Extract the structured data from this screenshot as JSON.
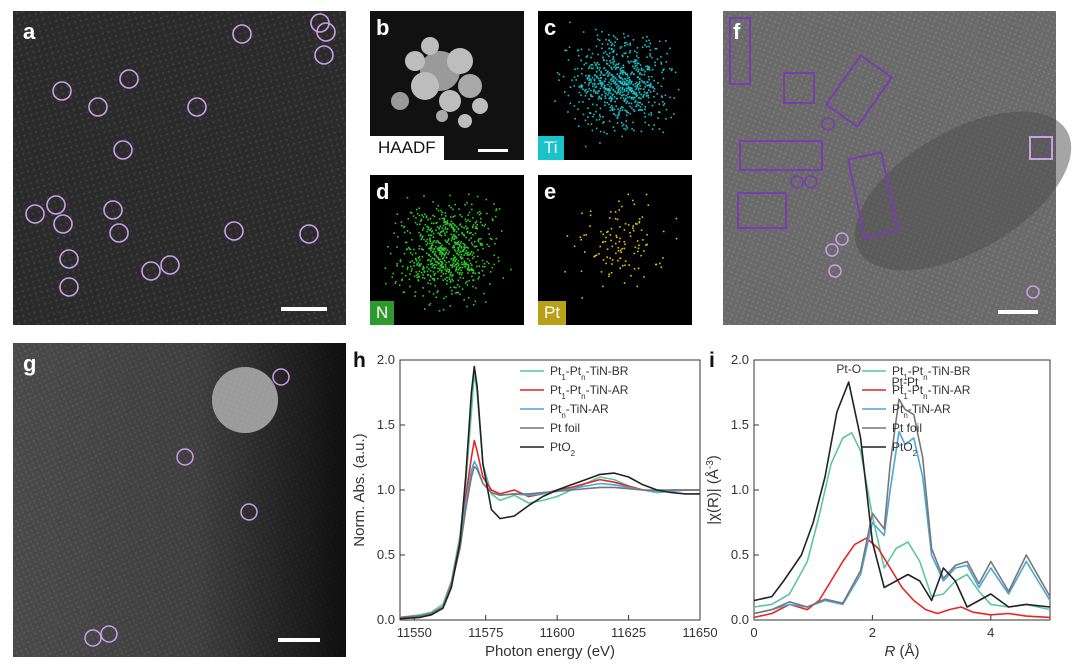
{
  "panels": {
    "a": {
      "label": "a"
    },
    "b": {
      "label": "b",
      "tag": "HAADF"
    },
    "c": {
      "label": "c",
      "tag": "Ti"
    },
    "d": {
      "label": "d",
      "tag": "N"
    },
    "e": {
      "label": "e",
      "tag": "Pt"
    },
    "f": {
      "label": "f"
    },
    "g": {
      "label": "g"
    },
    "h": {
      "label": "h"
    },
    "i": {
      "label": "i"
    }
  },
  "colors": {
    "circle": "#c9a0e8",
    "rect": "#7a3db0",
    "ti": "#19c3c9",
    "n": "#2ecc2e",
    "pt": "#e0c21a",
    "br": "#5cc6a0",
    "ar": "#e82424",
    "tin": "#4aa6d8",
    "foil": "#777777",
    "pto2": "#222222"
  },
  "chart_data": [
    {
      "type": "line",
      "panel": "h",
      "xlabel": "Photon energy (eV)",
      "ylabel": "Norm. Abs. (a.u.)",
      "xlim": [
        11545,
        11650
      ],
      "ylim": [
        0,
        2.0
      ],
      "xticks": [
        "11550",
        "11575",
        "11600",
        "11625",
        "11650"
      ],
      "yticks": [
        "0.0",
        "0.5",
        "1.0",
        "1.5",
        "2.0"
      ],
      "legend_position": "top-right",
      "legend_html": [
        "Pt<sub>1</sub>-Pt<sub>n</sub>-TiN-BR",
        "Pt<sub>1</sub>-Pt<sub>n</sub>-TiN-AR",
        "Pt<sub>n</sub>-TiN-AR",
        "Pt foil",
        "PtO<sub>2</sub>"
      ],
      "series": [
        {
          "name": "Pt1-Pt_n-TiN-BR",
          "color": "br",
          "x": [
            11545,
            11552,
            11556,
            11560,
            11563,
            11566,
            11568,
            11570,
            11571,
            11572,
            11574,
            11577,
            11580,
            11585,
            11590,
            11595,
            11600,
            11605,
            11610,
            11615,
            11620,
            11625,
            11630,
            11635,
            11640,
            11645,
            11650
          ],
          "y": [
            0.02,
            0.04,
            0.06,
            0.12,
            0.3,
            0.65,
            1.05,
            1.6,
            1.9,
            1.75,
            1.2,
            0.97,
            0.92,
            0.96,
            0.9,
            0.92,
            0.95,
            1.0,
            1.05,
            1.1,
            1.08,
            1.03,
            1.0,
            0.98,
            0.99,
            1.0,
            1.0
          ]
        },
        {
          "name": "Pt1-Pt_n-TiN-AR",
          "color": "ar",
          "x": [
            11545,
            11552,
            11556,
            11560,
            11563,
            11566,
            11568,
            11570,
            11571,
            11572,
            11574,
            11577,
            11580,
            11585,
            11590,
            11595,
            11600,
            11605,
            11610,
            11615,
            11620,
            11625,
            11630,
            11635,
            11640,
            11645,
            11650
          ],
          "y": [
            0.02,
            0.03,
            0.05,
            0.1,
            0.28,
            0.6,
            0.95,
            1.25,
            1.38,
            1.3,
            1.1,
            1.0,
            0.97,
            1.0,
            0.95,
            0.97,
            1.0,
            1.02,
            1.05,
            1.08,
            1.06,
            1.03,
            1.0,
            0.99,
            1.0,
            1.0,
            1.0
          ]
        },
        {
          "name": "Pt_n-TiN-AR",
          "color": "tin",
          "x": [
            11545,
            11552,
            11556,
            11560,
            11563,
            11566,
            11568,
            11570,
            11571,
            11572,
            11574,
            11577,
            11580,
            11585,
            11590,
            11595,
            11600,
            11605,
            11610,
            11615,
            11620,
            11625,
            11630,
            11635,
            11640,
            11645,
            11650
          ],
          "y": [
            0.02,
            0.03,
            0.05,
            0.1,
            0.27,
            0.58,
            0.9,
            1.15,
            1.22,
            1.18,
            1.05,
            0.98,
            0.96,
            0.97,
            0.96,
            0.97,
            0.99,
            1.01,
            1.03,
            1.05,
            1.04,
            1.02,
            1.0,
            0.99,
            0.99,
            1.0,
            1.0
          ]
        },
        {
          "name": "Pt foil",
          "color": "foil",
          "x": [
            11545,
            11552,
            11556,
            11560,
            11563,
            11566,
            11568,
            11570,
            11571,
            11572,
            11574,
            11577,
            11580,
            11585,
            11590,
            11595,
            11600,
            11605,
            11610,
            11615,
            11620,
            11625,
            11630,
            11635,
            11640,
            11645,
            11650
          ],
          "y": [
            0.02,
            0.03,
            0.05,
            0.1,
            0.27,
            0.55,
            0.85,
            1.1,
            1.18,
            1.16,
            1.05,
            0.98,
            0.96,
            0.97,
            0.97,
            0.98,
            0.99,
            1.0,
            1.01,
            1.02,
            1.02,
            1.01,
            1.0,
            1.0,
            1.0,
            1.0,
            1.0
          ]
        },
        {
          "name": "PtO2",
          "color": "pto2",
          "x": [
            11545,
            11552,
            11556,
            11560,
            11563,
            11566,
            11568,
            11570,
            11571,
            11572,
            11574,
            11577,
            11580,
            11585,
            11590,
            11595,
            11600,
            11605,
            11610,
            11615,
            11620,
            11625,
            11630,
            11635,
            11640,
            11645,
            11650
          ],
          "y": [
            0.01,
            0.02,
            0.04,
            0.09,
            0.25,
            0.6,
            1.1,
            1.75,
            1.95,
            1.8,
            1.2,
            0.85,
            0.78,
            0.8,
            0.88,
            0.95,
            1.0,
            1.04,
            1.08,
            1.12,
            1.13,
            1.1,
            1.04,
            1.0,
            0.98,
            0.97,
            0.97
          ]
        }
      ]
    },
    {
      "type": "line",
      "panel": "i",
      "xlabel_html": "<tspan font-style=\"italic\">R</tspan> (Å)",
      "ylabel_html": "|χ(R)| (Å<tspan baseline-shift=\"super\" font-size=\"10\">-3</tspan>)",
      "xlim": [
        0,
        5
      ],
      "ylim": [
        0,
        2.0
      ],
      "xticks": [
        "0",
        "2",
        "4"
      ],
      "yticks": [
        "0.0",
        "0.5",
        "1.0",
        "1.5",
        "2.0"
      ],
      "annotations": [
        "Pt-O",
        "Pt-Pt"
      ],
      "legend_position": "top-right",
      "legend_html": [
        "Pt<sub>1</sub>-Pt<sub>n</sub>-TiN-BR",
        "Pt<sub>1</sub>-Pt<sub>n</sub>-TiN-AR",
        "Pt<sub>n</sub>-TiN-AR",
        "Pt foil",
        "PtO<sub>2</sub>"
      ],
      "series": [
        {
          "name": "Pt1-Pt_n-TiN-BR",
          "color": "br",
          "x": [
            0,
            0.3,
            0.6,
            0.9,
            1.1,
            1.3,
            1.5,
            1.65,
            1.8,
            2.0,
            2.2,
            2.4,
            2.6,
            2.8,
            3.0,
            3.2,
            3.4,
            3.6,
            3.8,
            4.0,
            4.3,
            4.6,
            5.0
          ],
          "y": [
            0.1,
            0.12,
            0.2,
            0.45,
            0.8,
            1.2,
            1.4,
            1.44,
            1.3,
            0.8,
            0.4,
            0.55,
            0.6,
            0.45,
            0.18,
            0.2,
            0.3,
            0.35,
            0.22,
            0.12,
            0.1,
            0.12,
            0.08
          ]
        },
        {
          "name": "Pt1-Pt_n-TiN-AR",
          "color": "ar",
          "x": [
            0,
            0.3,
            0.6,
            0.9,
            1.1,
            1.3,
            1.5,
            1.7,
            1.9,
            2.1,
            2.3,
            2.5,
            2.7,
            2.9,
            3.1,
            3.3,
            3.5,
            3.7,
            4.0,
            4.3,
            4.6,
            5.0
          ],
          "y": [
            0.02,
            0.05,
            0.12,
            0.08,
            0.15,
            0.3,
            0.45,
            0.58,
            0.63,
            0.55,
            0.4,
            0.25,
            0.15,
            0.08,
            0.05,
            0.08,
            0.1,
            0.06,
            0.04,
            0.05,
            0.03,
            0.02
          ]
        },
        {
          "name": "Pt_n-TiN-AR",
          "color": "tin",
          "x": [
            0,
            0.3,
            0.6,
            0.9,
            1.2,
            1.5,
            1.8,
            2.0,
            2.2,
            2.3,
            2.45,
            2.55,
            2.7,
            2.85,
            3.0,
            3.2,
            3.4,
            3.6,
            3.8,
            4.0,
            4.3,
            4.6,
            5.0
          ],
          "y": [
            0.05,
            0.08,
            0.12,
            0.1,
            0.15,
            0.12,
            0.35,
            0.75,
            0.65,
            1.0,
            1.45,
            1.35,
            1.4,
            1.1,
            0.5,
            0.3,
            0.4,
            0.42,
            0.25,
            0.4,
            0.2,
            0.45,
            0.15
          ]
        },
        {
          "name": "Pt foil",
          "color": "foil",
          "x": [
            0,
            0.3,
            0.6,
            0.9,
            1.2,
            1.5,
            1.8,
            2.0,
            2.2,
            2.3,
            2.45,
            2.55,
            2.7,
            2.85,
            3.0,
            3.2,
            3.4,
            3.6,
            3.8,
            4.0,
            4.3,
            4.6,
            5.0
          ],
          "y": [
            0.05,
            0.08,
            0.14,
            0.1,
            0.16,
            0.13,
            0.38,
            0.82,
            0.7,
            1.2,
            1.7,
            1.62,
            1.58,
            1.25,
            0.55,
            0.32,
            0.42,
            0.45,
            0.28,
            0.45,
            0.22,
            0.5,
            0.18
          ]
        },
        {
          "name": "PtO2",
          "color": "pto2",
          "x": [
            0,
            0.3,
            0.5,
            0.8,
            1.0,
            1.2,
            1.4,
            1.6,
            1.8,
            2.0,
            2.2,
            2.4,
            2.6,
            2.8,
            3.0,
            3.2,
            3.4,
            3.6,
            3.8,
            4.0,
            4.3,
            4.6,
            5.0
          ],
          "y": [
            0.15,
            0.18,
            0.3,
            0.5,
            0.75,
            1.1,
            1.6,
            1.83,
            1.4,
            0.6,
            0.25,
            0.3,
            0.35,
            0.3,
            0.15,
            0.4,
            0.3,
            0.1,
            0.15,
            0.2,
            0.1,
            0.12,
            0.1
          ]
        }
      ]
    }
  ]
}
